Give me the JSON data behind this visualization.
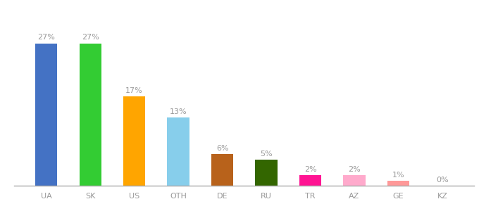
{
  "categories": [
    "UA",
    "SK",
    "US",
    "OTH",
    "DE",
    "RU",
    "TR",
    "AZ",
    "GE",
    "KZ"
  ],
  "values": [
    27,
    27,
    17,
    13,
    6,
    5,
    2,
    2,
    1,
    0
  ],
  "bar_colors": [
    "#4472c4",
    "#33cc33",
    "#ffa500",
    "#87ceeb",
    "#b8621b",
    "#336600",
    "#ff1493",
    "#ffaacc",
    "#ff9999",
    "#ffb6c1"
  ],
  "ylim": [
    0,
    32
  ],
  "label_color": "#999999",
  "label_fontsize": 8,
  "tick_fontsize": 8,
  "bar_width": 0.5,
  "background_color": "#ffffff"
}
